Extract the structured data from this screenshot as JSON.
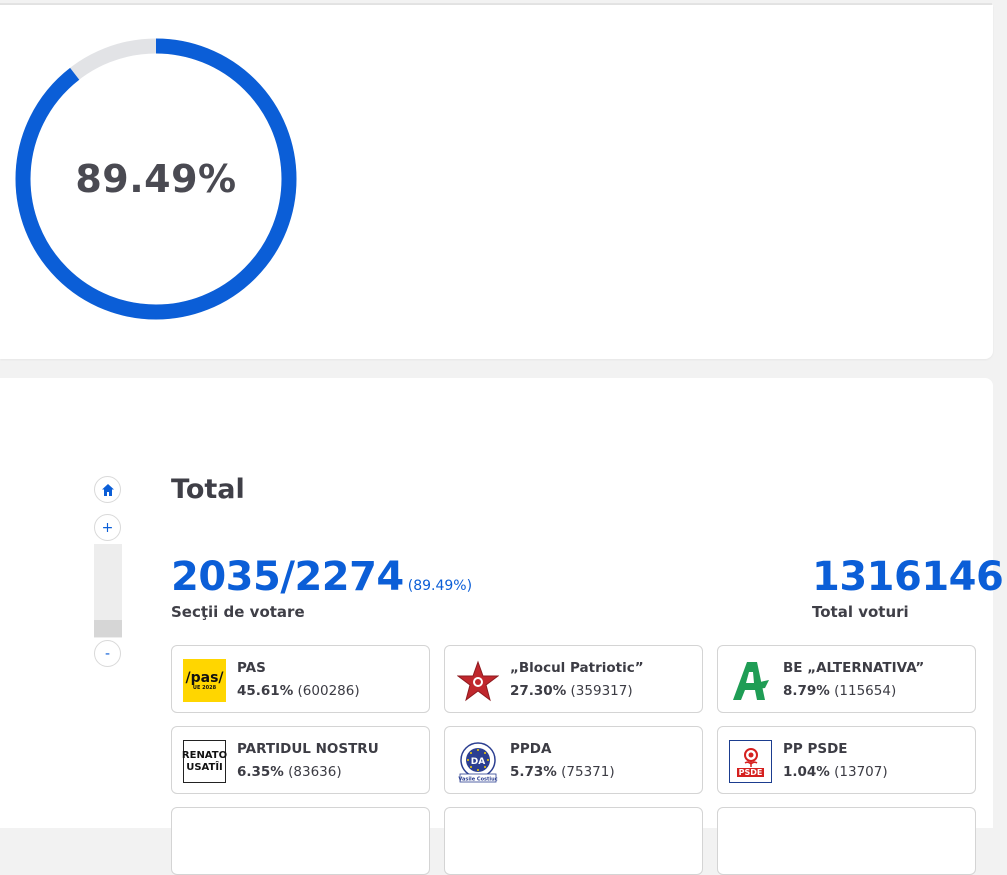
{
  "progress": {
    "percent_label": "89.49%",
    "fraction": 0.8949,
    "fill_color": "#0b5ed7",
    "track_color": "#e2e3e6"
  },
  "zoom": {
    "home_icon": "home-icon",
    "zoom_in_label": "+",
    "zoom_out_label": "-"
  },
  "summary": {
    "title": "Total",
    "sections_counted": "2035/2274",
    "sections_pct": "(89.49%)",
    "sections_label": "Secţii de votare",
    "total_votes": "1316146",
    "total_votes_label": "Total voturi"
  },
  "parties": [
    {
      "name": "PAS",
      "pct": "45.61%",
      "votes": "(600286)",
      "logo": "pas-logo",
      "logo_text": "/pas/",
      "logo_subtext": "UE 2028"
    },
    {
      "name": "„Blocul Patriotic”",
      "pct": "27.30%",
      "votes": "(359317)",
      "logo": "red-star-logo"
    },
    {
      "name": "BE „ALTERNATIVA”",
      "pct": "8.79%",
      "votes": "(115654)",
      "logo": "green-a-logo"
    },
    {
      "name": "PARTIDUL NOSTRU",
      "pct": "6.35%",
      "votes": "(83636)",
      "logo": "renato-usatii-logo",
      "logo_text_1": "RENATO",
      "logo_text_2": "USATÎI"
    },
    {
      "name": "PPDA",
      "pct": "5.73%",
      "votes": "(75371)",
      "logo": "ppda-seal-logo",
      "logo_text": "DA",
      "logo_subtext": "Vasile Costiuc"
    },
    {
      "name": "PP PSDE",
      "pct": "1.04%",
      "votes": "(13707)",
      "logo": "psde-rose-logo",
      "logo_text": "PSDE"
    }
  ]
}
